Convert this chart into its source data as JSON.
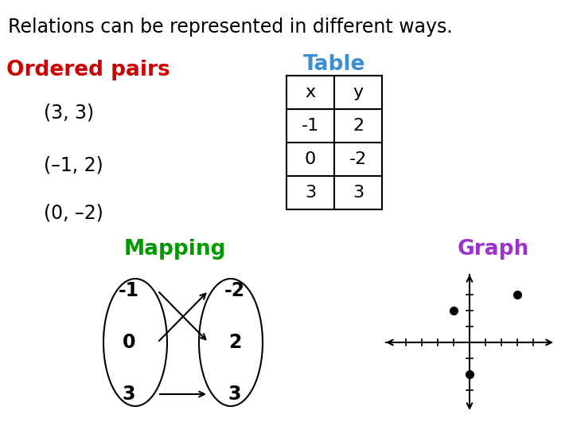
{
  "title": "Relations can be represented in different ways.",
  "title_fontsize": 17,
  "title_color": "#000000",
  "bg_color": "#ffffff",
  "ordered_pairs_label": "Ordered pairs",
  "ordered_pairs_color": "#cc0000",
  "ordered_pairs_fontsize": 19,
  "pairs": [
    "(3, 3)",
    "(–1, 2)",
    "(0, –2)"
  ],
  "pairs_fontsize": 17,
  "table_label": "Table",
  "table_color": "#3b8ed0",
  "table_fontsize": 19,
  "table_headers": [
    "x",
    "y"
  ],
  "table_rows": [
    [
      "-1",
      "2"
    ],
    [
      "0",
      "-2"
    ],
    [
      "3",
      "3"
    ]
  ],
  "mapping_label": "Mapping",
  "mapping_color": "#009900",
  "mapping_fontsize": 19,
  "mapping_left": [
    "-1",
    "0",
    "3"
  ],
  "mapping_right": [
    "-2",
    "2",
    "3"
  ],
  "mapping_arrows": [
    [
      0,
      1
    ],
    [
      1,
      0
    ],
    [
      2,
      2
    ]
  ],
  "graph_label": "Graph",
  "graph_color": "#9933cc",
  "graph_fontsize": 19,
  "graph_points": [
    [
      -1,
      2
    ],
    [
      0,
      -2
    ],
    [
      3,
      3
    ]
  ]
}
